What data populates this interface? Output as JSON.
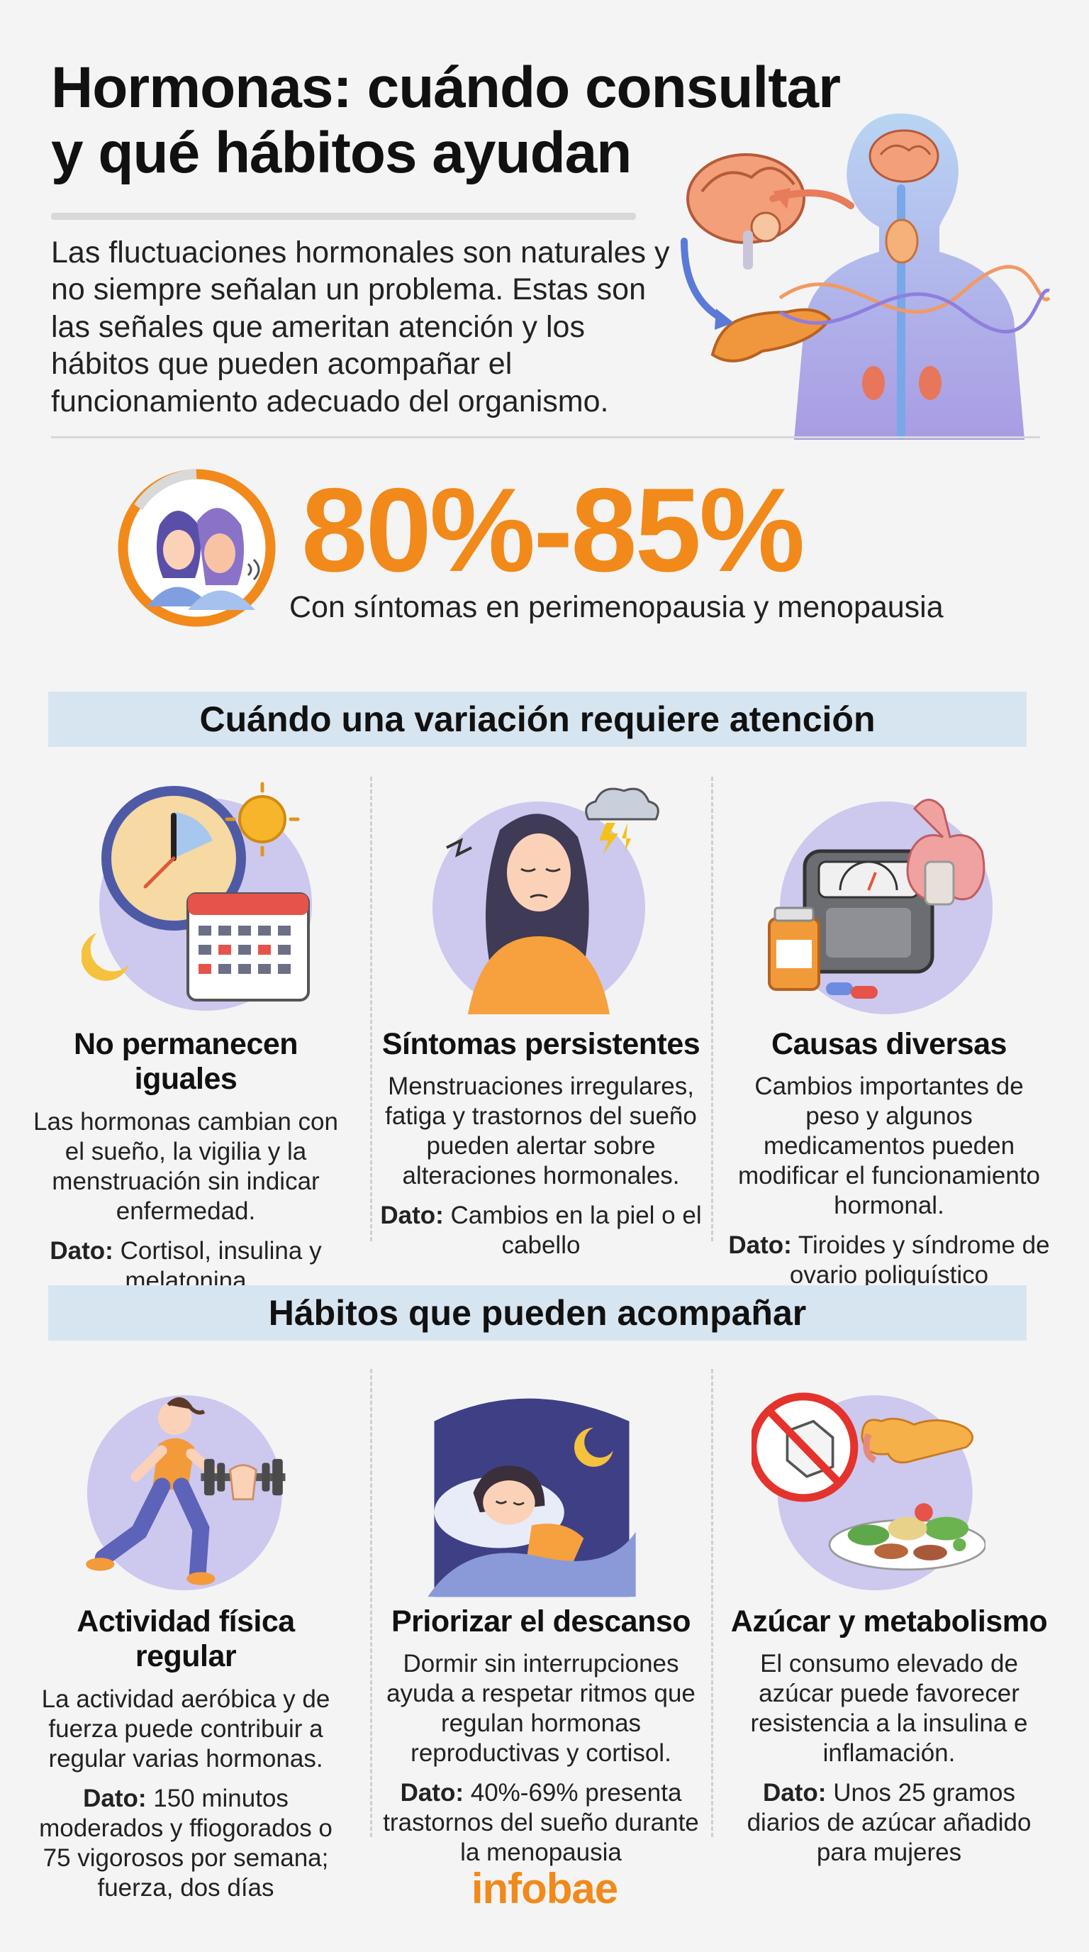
{
  "header": {
    "title_line1": "Hormonas: cuándo consultar",
    "title_line2": "y qué hábitos ayudan",
    "intro": "Las fluctuaciones hormonales son naturales y no siempre señalan un problema. Estas son las señales que ameritan atención y los hábitos que pueden acompañar el funcionamiento adecuado del organismo."
  },
  "stat": {
    "value": "80%-85%",
    "caption": "Con síntomas en perimenopausia y menopausia"
  },
  "section_attention": {
    "heading": "Cuándo una variación requiere atención",
    "cards": [
      {
        "title": "No permanecen iguales",
        "body": "Las hormonas cambian con el sueño, la vigilia y la menstruación sin indicar enfermedad.",
        "fact_label": "Dato:",
        "fact": "Cortisol, insulina y melatonina",
        "icon": "clock-sun-calendar-icon"
      },
      {
        "title": "Síntomas persistentes",
        "body": "Menstruaciones irregulares, fatiga y trastornos del sueño pueden alertar sobre alteraciones hormonales.",
        "fact_label": "Dato:",
        "fact": "Cambios en la piel o el cabello",
        "icon": "tired-woman-storm-icon"
      },
      {
        "title": "Causas diversas",
        "body": "Cambios importantes de peso y algunos medicamentos pueden modificar el funcionamiento hormonal.",
        "fact_label": "Dato:",
        "fact": "Tiroides y síndrome de ovario poliquístico",
        "icon": "scale-thyroid-pills-icon"
      }
    ]
  },
  "section_habits": {
    "heading": "Hábitos que pueden acompañar",
    "cards": [
      {
        "title": "Actividad física regular",
        "body": "La actividad aeróbica y de fuerza puede contribuir a regular varias hormonas.",
        "fact_label": "Dato:",
        "fact": "150 minutos moderados y ffiogorados o 75 vigorosos por semana; fuerza, dos días",
        "icon": "runner-dumbbell-icon"
      },
      {
        "title": "Priorizar el descanso",
        "body": "Dormir sin interrupciones ayuda a respetar ritmos que regulan hormonas reproductivas y cortisol.",
        "fact_label": "Dato:",
        "fact": "40%-69% presenta trastornos del sueño durante la menopausia",
        "icon": "sleeping-woman-moon-icon"
      },
      {
        "title": "Azúcar y metabolismo",
        "body": "El consumo elevado de azúcar puede favorecer resistencia a la insulina e inflamación.",
        "fact_label": "Dato:",
        "fact": "Unos 25 gramos diarios de azúcar añadido para mujeres",
        "icon": "no-sugar-pancreas-salad-icon"
      }
    ]
  },
  "brand": "infobae",
  "colors": {
    "accent": "#f18a1b",
    "band": "#d7e5f1",
    "illustration_bg": "#c9c6ee",
    "body_bg": "#f4f4f4"
  }
}
